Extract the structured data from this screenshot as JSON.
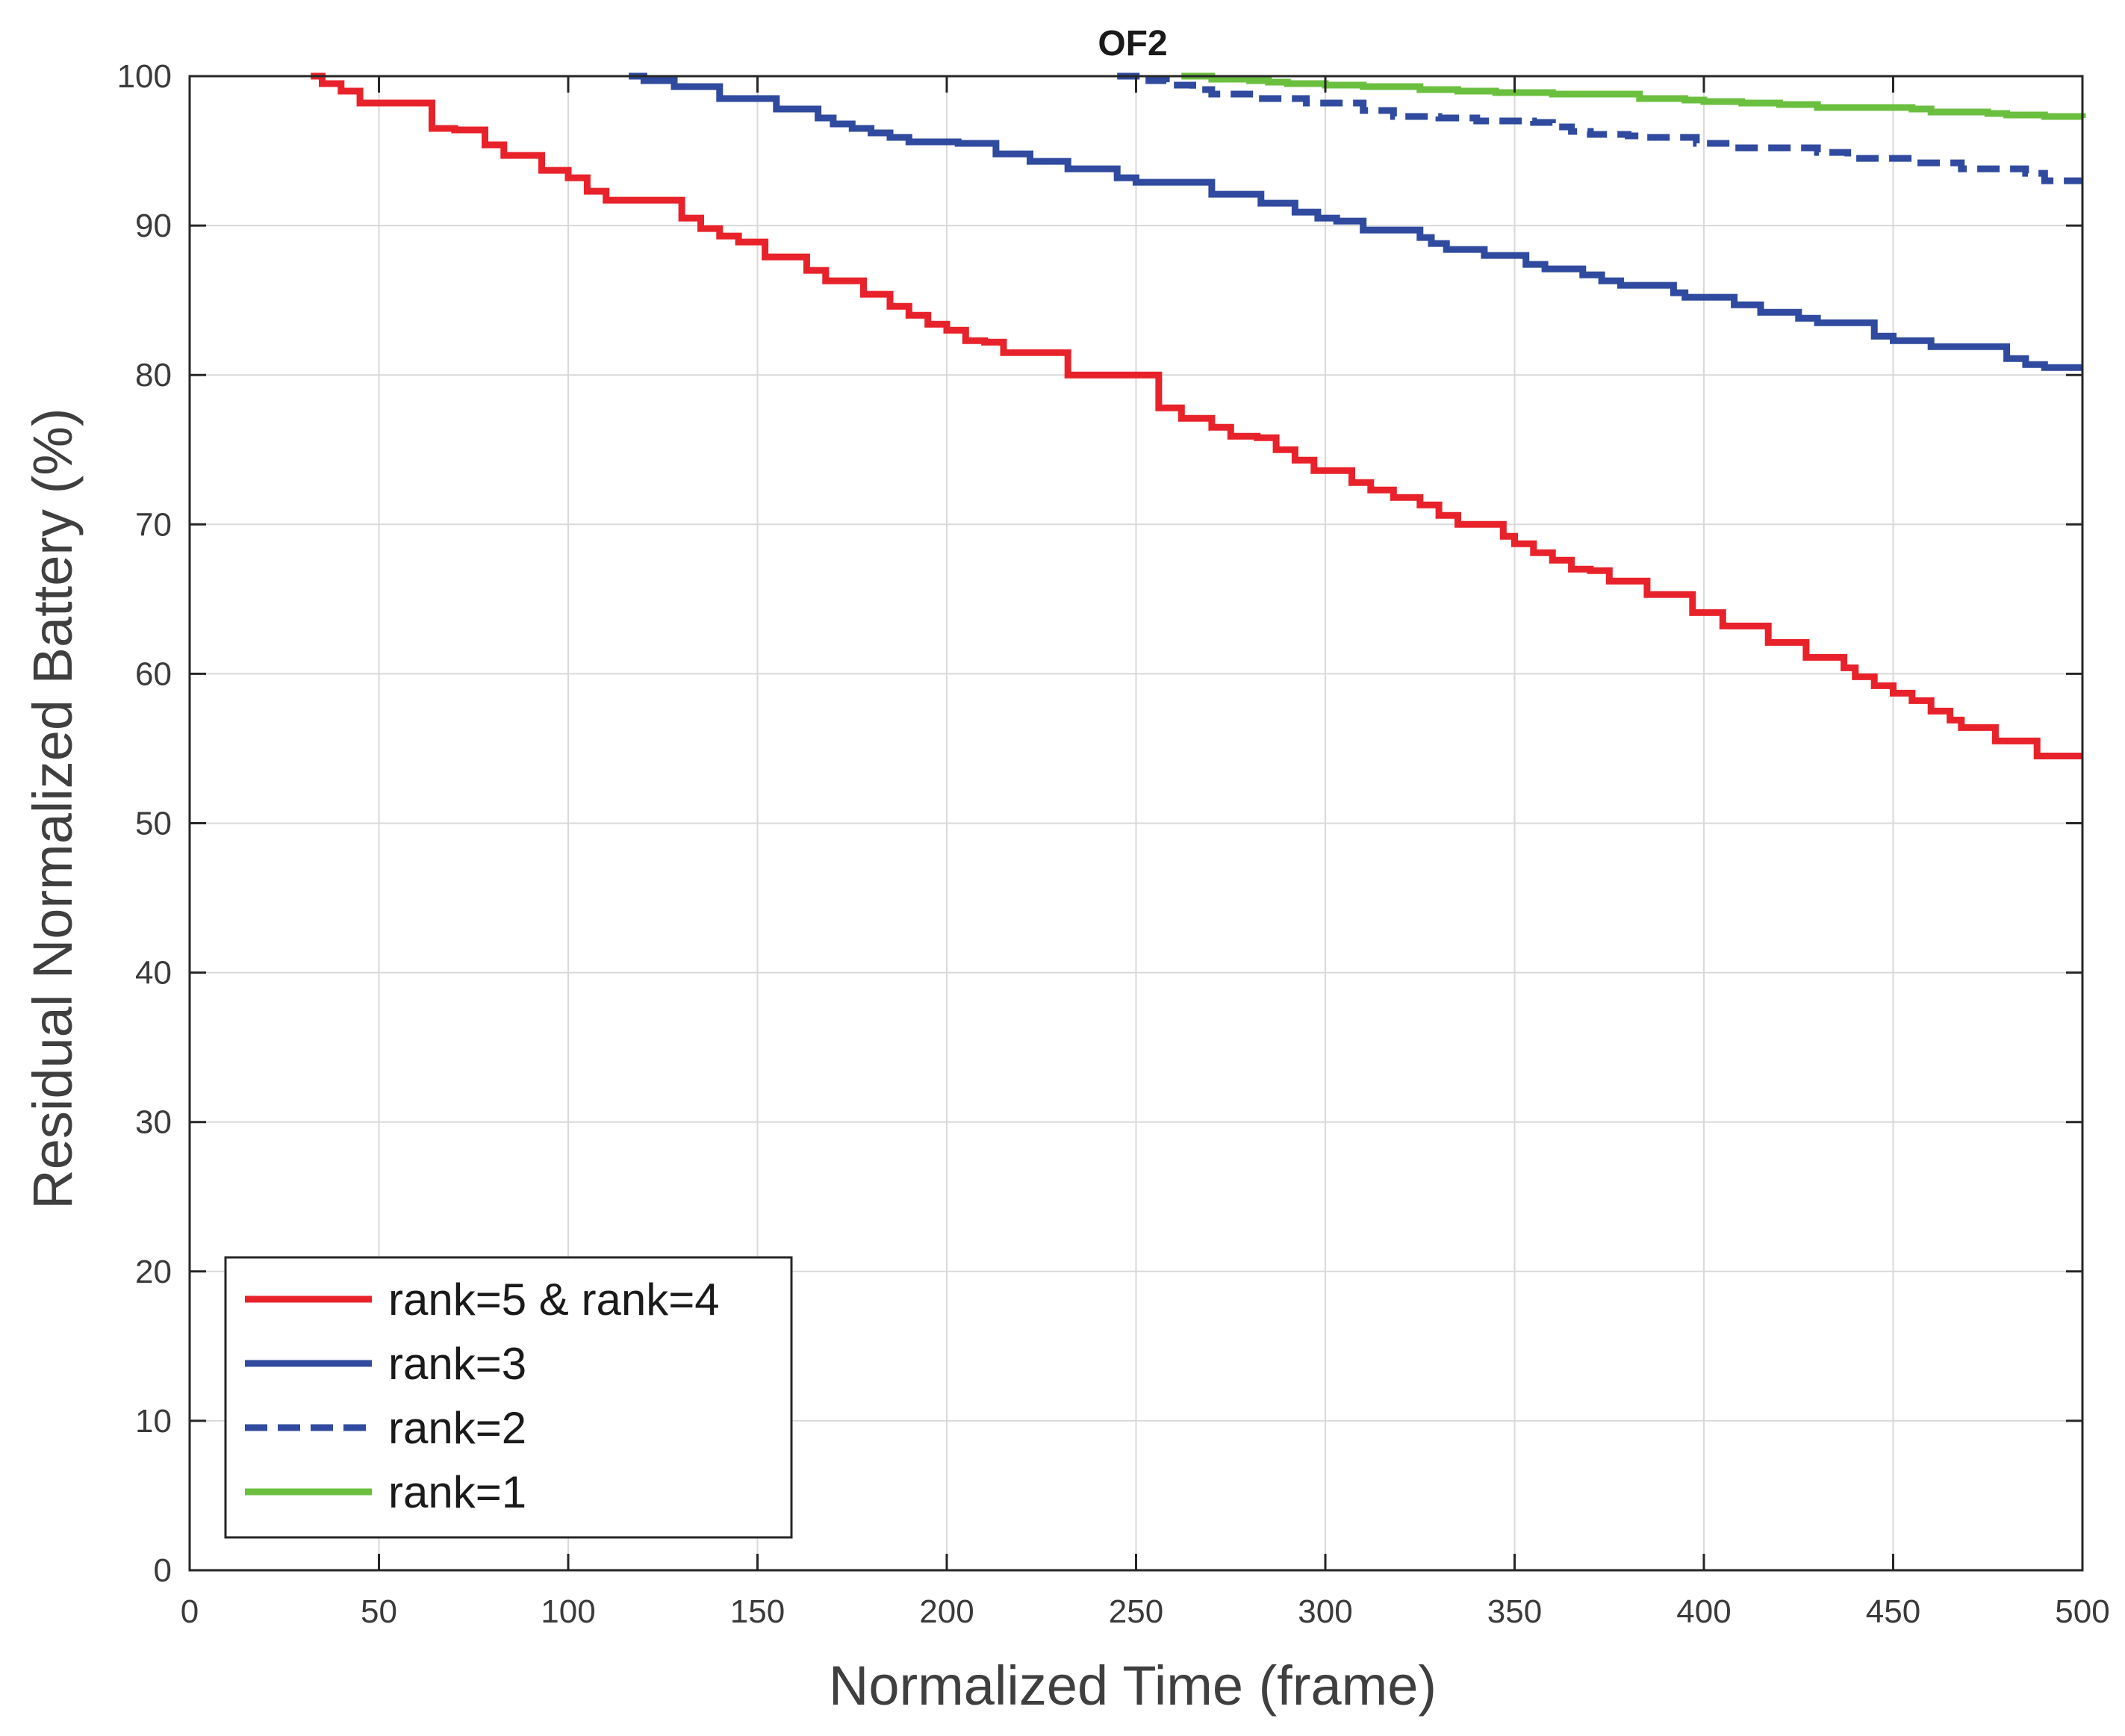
{
  "chart_data": {
    "type": "line",
    "title": "OF2",
    "xlabel": "Normalized Time (frame)",
    "ylabel": "Residual Normalized Battery (%)",
    "xlim": [
      0,
      500
    ],
    "ylim": [
      0,
      100
    ],
    "xticks": [
      0,
      50,
      100,
      150,
      200,
      250,
      300,
      350,
      400,
      450,
      500
    ],
    "yticks": [
      0,
      10,
      20,
      30,
      40,
      50,
      60,
      70,
      80,
      90,
      100
    ],
    "grid": true,
    "legend_position": "bottom-left",
    "series": [
      {
        "name": "rank=5 & rank=4",
        "color": "#e8222a",
        "style": "solid",
        "step": true,
        "points": [
          [
            32,
            100
          ],
          [
            35,
            99.5
          ],
          [
            40,
            99
          ],
          [
            45,
            98.2
          ],
          [
            50,
            98.2
          ],
          [
            55,
            98.2
          ],
          [
            63,
            98.2
          ],
          [
            64,
            96.5
          ],
          [
            70,
            96.4
          ],
          [
            77,
            96.4
          ],
          [
            78,
            95.4
          ],
          [
            83,
            94.7
          ],
          [
            92,
            94.7
          ],
          [
            93,
            93.7
          ],
          [
            98,
            93.7
          ],
          [
            100,
            93.2
          ],
          [
            105,
            92.3
          ],
          [
            110,
            91.7
          ],
          [
            120,
            91.7
          ],
          [
            129,
            91.7
          ],
          [
            130,
            90.5
          ],
          [
            135,
            89.8
          ],
          [
            140,
            89.3
          ],
          [
            145,
            88.9
          ],
          [
            150,
            88.9
          ],
          [
            152,
            87.9
          ],
          [
            160,
            87.9
          ],
          [
            163,
            87.0
          ],
          [
            168,
            86.3
          ],
          [
            175,
            86.3
          ],
          [
            178,
            85.4
          ],
          [
            185,
            84.6
          ],
          [
            190,
            84.0
          ],
          [
            195,
            83.4
          ],
          [
            200,
            83.0
          ],
          [
            205,
            82.3
          ],
          [
            210,
            82.2
          ],
          [
            215,
            81.5
          ],
          [
            220,
            81.5
          ],
          [
            230,
            81.5
          ],
          [
            232,
            80.0
          ],
          [
            245,
            80.0
          ],
          [
            255,
            80.0
          ],
          [
            256,
            77.8
          ],
          [
            262,
            77.1
          ],
          [
            270,
            76.5
          ],
          [
            275,
            75.9
          ],
          [
            282,
            75.8
          ],
          [
            287,
            75.0
          ],
          [
            292,
            74.3
          ],
          [
            297,
            73.6
          ],
          [
            305,
            73.6
          ],
          [
            307,
            72.8
          ],
          [
            312,
            72.3
          ],
          [
            318,
            71.8
          ],
          [
            325,
            71.3
          ],
          [
            330,
            70.6
          ],
          [
            335,
            70.0
          ],
          [
            345,
            70.0
          ],
          [
            347,
            69.2
          ],
          [
            350,
            68.7
          ],
          [
            355,
            68.1
          ],
          [
            360,
            67.6
          ],
          [
            365,
            67.0
          ],
          [
            370,
            66.9
          ],
          [
            375,
            66.2
          ],
          [
            380,
            66.2
          ],
          [
            385,
            65.3
          ],
          [
            390,
            65.3
          ],
          [
            395,
            65.3
          ],
          [
            397,
            64.1
          ],
          [
            402,
            64.1
          ],
          [
            405,
            63.2
          ],
          [
            410,
            63.2
          ],
          [
            415,
            63.2
          ],
          [
            417,
            62.1
          ],
          [
            425,
            62.1
          ],
          [
            427,
            61.1
          ],
          [
            435,
            61.1
          ],
          [
            437,
            60.4
          ],
          [
            440,
            59.8
          ],
          [
            445,
            59.2
          ],
          [
            450,
            58.7
          ],
          [
            455,
            58.2
          ],
          [
            460,
            57.5
          ],
          [
            465,
            56.9
          ],
          [
            468,
            56.4
          ],
          [
            475,
            56.4
          ],
          [
            477,
            55.5
          ],
          [
            485,
            55.5
          ],
          [
            488,
            54.5
          ],
          [
            500,
            54.5
          ]
        ]
      },
      {
        "name": "rank=3",
        "color": "#2f4a9e",
        "style": "solid",
        "step": true,
        "points": [
          [
            116,
            100
          ],
          [
            120,
            99.7
          ],
          [
            125,
            99.7
          ],
          [
            128,
            99.3
          ],
          [
            135,
            99.3
          ],
          [
            140,
            98.5
          ],
          [
            150,
            98.5
          ],
          [
            155,
            97.8
          ],
          [
            163,
            97.8
          ],
          [
            166,
            97.2
          ],
          [
            170,
            96.8
          ],
          [
            175,
            96.5
          ],
          [
            180,
            96.2
          ],
          [
            185,
            95.9
          ],
          [
            190,
            95.6
          ],
          [
            200,
            95.6
          ],
          [
            203,
            95.5
          ],
          [
            212,
            95.5
          ],
          [
            213,
            94.8
          ],
          [
            220,
            94.8
          ],
          [
            222,
            94.3
          ],
          [
            228,
            94.3
          ],
          [
            232,
            93.8
          ],
          [
            240,
            93.8
          ],
          [
            245,
            93.2
          ],
          [
            250,
            92.9
          ],
          [
            255,
            92.9
          ],
          [
            260,
            92.9
          ],
          [
            263,
            92.9
          ],
          [
            268,
            92.9
          ],
          [
            270,
            92.1
          ],
          [
            280,
            92.1
          ],
          [
            283,
            91.5
          ],
          [
            290,
            91.5
          ],
          [
            292,
            90.9
          ],
          [
            298,
            90.5
          ],
          [
            303,
            90.3
          ],
          [
            308,
            90.3
          ],
          [
            310,
            89.7
          ],
          [
            320,
            89.7
          ],
          [
            322,
            89.7
          ],
          [
            325,
            89.2
          ],
          [
            328,
            88.8
          ],
          [
            332,
            88.4
          ],
          [
            340,
            88.4
          ],
          [
            342,
            88.0
          ],
          [
            350,
            88.0
          ],
          [
            353,
            87.4
          ],
          [
            358,
            87.1
          ],
          [
            365,
            87.1
          ],
          [
            368,
            86.7
          ],
          [
            373,
            86.3
          ],
          [
            378,
            86.0
          ],
          [
            385,
            86.0
          ],
          [
            388,
            86.0
          ],
          [
            392,
            85.5
          ],
          [
            395,
            85.2
          ],
          [
            400,
            85.2
          ],
          [
            405,
            85.2
          ],
          [
            408,
            84.7
          ],
          [
            413,
            84.7
          ],
          [
            415,
            84.2
          ],
          [
            420,
            84.2
          ],
          [
            425,
            83.8
          ],
          [
            430,
            83.5
          ],
          [
            435,
            83.5
          ],
          [
            440,
            83.5
          ],
          [
            445,
            82.6
          ],
          [
            450,
            82.3
          ],
          [
            458,
            82.3
          ],
          [
            460,
            81.9
          ],
          [
            470,
            81.9
          ],
          [
            478,
            81.9
          ],
          [
            480,
            81.1
          ],
          [
            485,
            80.7
          ],
          [
            490,
            80.5
          ],
          [
            500,
            80.5
          ]
        ]
      },
      {
        "name": "rank=2",
        "color": "#2f4a9e",
        "style": "dashed",
        "step": true,
        "points": [
          [
            245,
            100
          ],
          [
            250,
            100
          ],
          [
            252,
            99.7
          ],
          [
            258,
            99.4
          ],
          [
            262,
            99.4
          ],
          [
            265,
            99.1
          ],
          [
            270,
            98.8
          ],
          [
            275,
            98.8
          ],
          [
            282,
            98.5
          ],
          [
            290,
            98.5
          ],
          [
            293,
            98.5
          ],
          [
            295,
            98.2
          ],
          [
            305,
            98.2
          ],
          [
            308,
            98.2
          ],
          [
            310,
            97.7
          ],
          [
            318,
            97.3
          ],
          [
            328,
            97.3
          ],
          [
            330,
            97.2
          ],
          [
            338,
            97.2
          ],
          [
            340,
            97.0
          ],
          [
            350,
            97.0
          ],
          [
            355,
            96.9
          ],
          [
            360,
            96.6
          ],
          [
            365,
            96.3
          ],
          [
            370,
            96.1
          ],
          [
            378,
            96.1
          ],
          [
            380,
            96.0
          ],
          [
            385,
            95.9
          ],
          [
            390,
            95.9
          ],
          [
            395,
            95.9
          ],
          [
            398,
            95.5
          ],
          [
            405,
            95.5
          ],
          [
            408,
            95.2
          ],
          [
            418,
            95.2
          ],
          [
            428,
            95.2
          ],
          [
            430,
            94.9
          ],
          [
            435,
            94.9
          ],
          [
            438,
            94.5
          ],
          [
            450,
            94.5
          ],
          [
            455,
            94.2
          ],
          [
            465,
            94.2
          ],
          [
            468,
            93.8
          ],
          [
            480,
            93.8
          ],
          [
            485,
            93.5
          ],
          [
            490,
            93.0
          ],
          [
            500,
            93.0
          ]
        ]
      },
      {
        "name": "rank=1",
        "color": "#6bbf3f",
        "style": "solid",
        "step": true,
        "points": [
          [
            262,
            100
          ],
          [
            265,
            100
          ],
          [
            270,
            99.8
          ],
          [
            275,
            99.8
          ],
          [
            280,
            99.7
          ],
          [
            285,
            99.6
          ],
          [
            290,
            99.5
          ],
          [
            295,
            99.5
          ],
          [
            300,
            99.4
          ],
          [
            305,
            99.4
          ],
          [
            310,
            99.3
          ],
          [
            315,
            99.3
          ],
          [
            320,
            99.3
          ],
          [
            325,
            99.1
          ],
          [
            330,
            99.1
          ],
          [
            335,
            99.0
          ],
          [
            340,
            99.0
          ],
          [
            345,
            98.9
          ],
          [
            350,
            98.9
          ],
          [
            355,
            98.9
          ],
          [
            360,
            98.8
          ],
          [
            365,
            98.8
          ],
          [
            370,
            98.8
          ],
          [
            375,
            98.8
          ],
          [
            380,
            98.8
          ],
          [
            383,
            98.5
          ],
          [
            390,
            98.5
          ],
          [
            395,
            98.4
          ],
          [
            400,
            98.3
          ],
          [
            405,
            98.3
          ],
          [
            410,
            98.2
          ],
          [
            415,
            98.2
          ],
          [
            420,
            98.1
          ],
          [
            425,
            98.1
          ],
          [
            430,
            97.9
          ],
          [
            440,
            97.9
          ],
          [
            445,
            97.9
          ],
          [
            450,
            97.9
          ],
          [
            455,
            97.8
          ],
          [
            460,
            97.6
          ],
          [
            470,
            97.6
          ],
          [
            475,
            97.5
          ],
          [
            480,
            97.4
          ],
          [
            490,
            97.3
          ],
          [
            500,
            97.2
          ]
        ]
      }
    ]
  }
}
